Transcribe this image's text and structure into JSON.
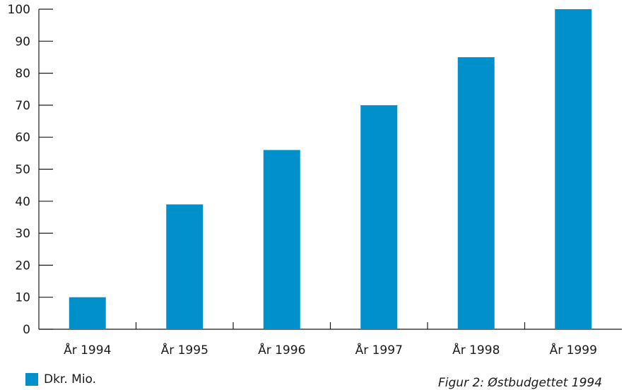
{
  "chart_data": {
    "type": "bar",
    "categories": [
      "År 1994",
      "År 1995",
      "År 1996",
      "År 1997",
      "År 1998",
      "År 1999"
    ],
    "series": [
      {
        "name": "Dkr. Mio.",
        "values": [
          10,
          39,
          56,
          70,
          85,
          100
        ]
      }
    ],
    "yticks": [
      "0",
      "10",
      "20",
      "30",
      "40",
      "50",
      "60",
      "70",
      "80",
      "90",
      "100"
    ],
    "ylim": [
      0,
      100
    ],
    "grid": false,
    "legend_position": "bottom-left",
    "bar_color": "#0090CC",
    "caption": "Figur 2: Østbudgettet 1994"
  }
}
